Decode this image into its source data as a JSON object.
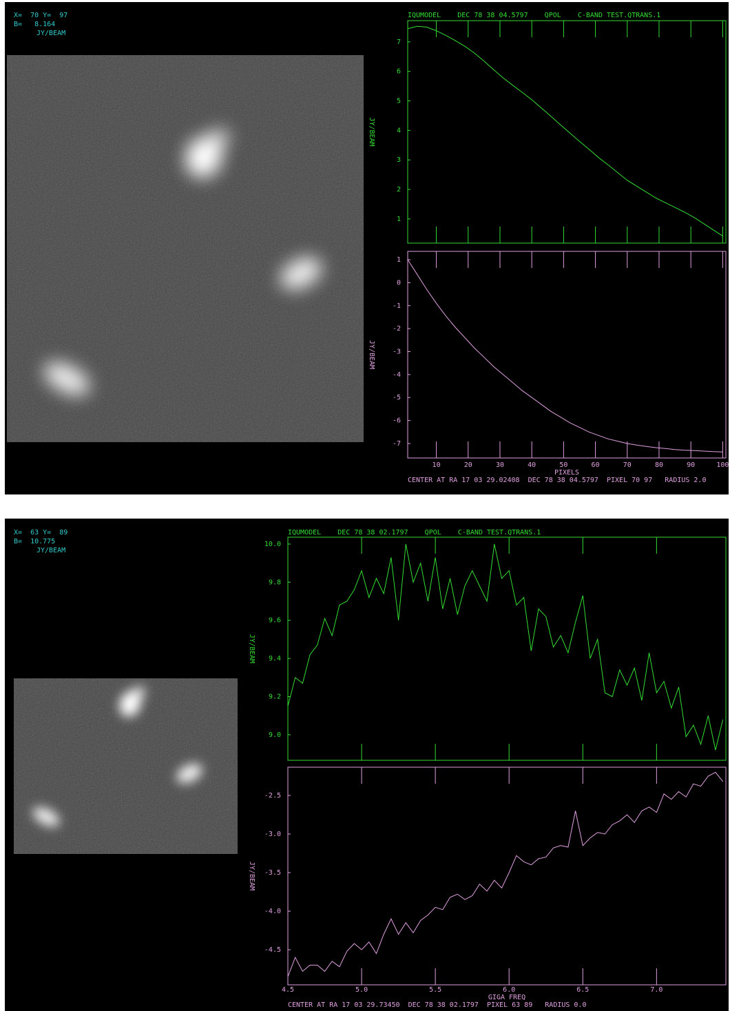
{
  "panels": [
    {
      "info": [
        "X=  70 Y=  97",
        "B=   8.164",
        "JY/BEAM"
      ],
      "header": "IQUMODEL    DEC 78 38 04.5797    QPOL    C-BAND TEST.QTRANS.1",
      "footer": "CENTER AT RA 17 03 29.02408  DEC 78 38 04.5797  PIXEL 70 97   RADIUS 2.0",
      "x_label": "PIXELS",
      "xlim": [
        1,
        101
      ],
      "xticks": [
        10,
        20,
        30,
        40,
        50,
        60,
        70,
        80,
        90,
        100
      ],
      "x": [
        1,
        4,
        7,
        10,
        13,
        16,
        19,
        22,
        25,
        28,
        31,
        34,
        37,
        40,
        43,
        46,
        49,
        52,
        55,
        58,
        61,
        64,
        67,
        70,
        73,
        76,
        79,
        82,
        85,
        88,
        91,
        94,
        97,
        100
      ],
      "plots": [
        {
          "type": "line",
          "y_label": "JY/BEAM",
          "ylim": [
            0.18,
            7.72
          ],
          "yticks": [
            1,
            2,
            3,
            4,
            5,
            6,
            7
          ],
          "series": [
            {
              "color": "#33dd33",
              "values": [
                7.45,
                7.53,
                7.5,
                7.38,
                7.22,
                7.04,
                6.85,
                6.62,
                6.35,
                6.06,
                5.78,
                5.53,
                5.29,
                5.04,
                4.76,
                4.48,
                4.19,
                3.91,
                3.63,
                3.36,
                3.08,
                2.83,
                2.57,
                2.31,
                2.11,
                1.91,
                1.71,
                1.55,
                1.39,
                1.23,
                1.05,
                0.84,
                0.63,
                0.42
              ]
            }
          ]
        },
        {
          "type": "line",
          "y_label": "JY/BEAM",
          "ylim": [
            -7.63,
            1.36
          ],
          "yticks": [
            1,
            0,
            -1,
            -2,
            -3,
            -4,
            -5,
            -6,
            -7
          ],
          "series": [
            {
              "color": "#e0a0e0",
              "values": [
                1.0,
                0.35,
                -0.3,
                -0.9,
                -1.45,
                -1.95,
                -2.4,
                -2.85,
                -3.25,
                -3.65,
                -4.0,
                -4.35,
                -4.7,
                -5.0,
                -5.3,
                -5.6,
                -5.85,
                -6.1,
                -6.3,
                -6.5,
                -6.65,
                -6.8,
                -6.9,
                -7.0,
                -7.07,
                -7.13,
                -7.18,
                -7.22,
                -7.26,
                -7.29,
                -7.31,
                -7.33,
                -7.35,
                -7.37
              ]
            }
          ]
        }
      ]
    },
    {
      "info": [
        "X=  63 Y=  89",
        "B=  10.775",
        "JY/BEAM"
      ],
      "header": "IQUMODEL    DEC 78 38 02.1797    QPOL    C-BAND TEST.QTRANS.1",
      "footer": "CENTER AT RA 17 03 29.73450  DEC 78 38 02.1797  PIXEL 63 89   RADIUS 0.0",
      "x_label": "GIGA FREQ",
      "xlim": [
        4.5,
        7.47
      ],
      "xticks": [
        4.5,
        {
          "value": 5,
          "label": "5.0"
        },
        5.5,
        {
          "value": 6,
          "label": "6.0"
        },
        6.5,
        {
          "value": 7,
          "label": "7.0"
        }
      ],
      "x": [
        4.5,
        4.55,
        4.6,
        4.65,
        4.7,
        4.75,
        4.8,
        4.85,
        4.9,
        4.95,
        5.0,
        5.05,
        5.1,
        5.15,
        5.2,
        5.25,
        5.3,
        5.35,
        5.4,
        5.45,
        5.5,
        5.55,
        5.6,
        5.65,
        5.7,
        5.75,
        5.8,
        5.85,
        5.9,
        5.95,
        6.0,
        6.05,
        6.1,
        6.15,
        6.2,
        6.25,
        6.3,
        6.35,
        6.4,
        6.45,
        6.5,
        6.55,
        6.6,
        6.65,
        6.7,
        6.75,
        6.8,
        6.85,
        6.9,
        6.95,
        7.0,
        7.05,
        7.1,
        7.15,
        7.2,
        7.25,
        7.3,
        7.35,
        7.4,
        7.45
      ],
      "plots": [
        {
          "type": "line",
          "y_label": "JY/BEAM",
          "ylim": [
            8.866,
            10.036
          ],
          "yticks": [
            {
              "value": 10,
              "label": "10.0"
            },
            9.8,
            9.6,
            9.4,
            9.2,
            {
              "value": 9,
              "label": "9.0"
            }
          ],
          "series": [
            {
              "color": "#33dd33",
              "values": [
                9.15,
                9.3,
                9.27,
                9.42,
                9.47,
                9.61,
                9.52,
                9.68,
                9.7,
                9.76,
                9.86,
                9.72,
                9.82,
                9.74,
                9.93,
                9.6,
                10.0,
                9.8,
                9.9,
                9.7,
                9.93,
                9.66,
                9.82,
                9.63,
                9.78,
                9.86,
                9.78,
                9.7,
                10.0,
                9.82,
                9.86,
                9.68,
                9.72,
                9.44,
                9.66,
                9.62,
                9.46,
                9.52,
                9.43,
                9.59,
                9.73,
                9.4,
                9.5,
                9.22,
                9.2,
                9.34,
                9.26,
                9.35,
                9.18,
                9.43,
                9.22,
                9.28,
                9.14,
                9.25,
                8.99,
                9.05,
                8.95,
                9.1,
                8.92,
                9.08
              ]
            }
          ]
        },
        {
          "type": "line",
          "y_label": "JY/BEAM",
          "ylim": [
            -4.955,
            -2.134
          ],
          "yticks": [
            -2.5,
            {
              "value": -3,
              "label": "-3.0"
            },
            -3.5,
            {
              "value": -4,
              "label": "-4.0"
            },
            -4.5
          ],
          "series": [
            {
              "color": "#e0a0e0",
              "values": [
                -4.85,
                -4.6,
                -4.78,
                -4.7,
                -4.7,
                -4.78,
                -4.65,
                -4.72,
                -4.52,
                -4.42,
                -4.5,
                -4.4,
                -4.55,
                -4.3,
                -4.1,
                -4.3,
                -4.15,
                -4.28,
                -4.12,
                -4.05,
                -3.95,
                -3.98,
                -3.82,
                -3.78,
                -3.85,
                -3.8,
                -3.65,
                -3.74,
                -3.6,
                -3.7,
                -3.5,
                -3.28,
                -3.36,
                -3.4,
                -3.32,
                -3.3,
                -3.18,
                -3.15,
                -3.17,
                -2.7,
                -3.15,
                -3.05,
                -2.98,
                -3.0,
                -2.88,
                -2.83,
                -2.75,
                -2.85,
                -2.7,
                -2.65,
                -2.72,
                -2.48,
                -2.55,
                -2.45,
                -2.52,
                -2.35,
                -2.38,
                -2.25,
                -2.2,
                -2.32
              ]
            }
          ]
        }
      ]
    }
  ]
}
